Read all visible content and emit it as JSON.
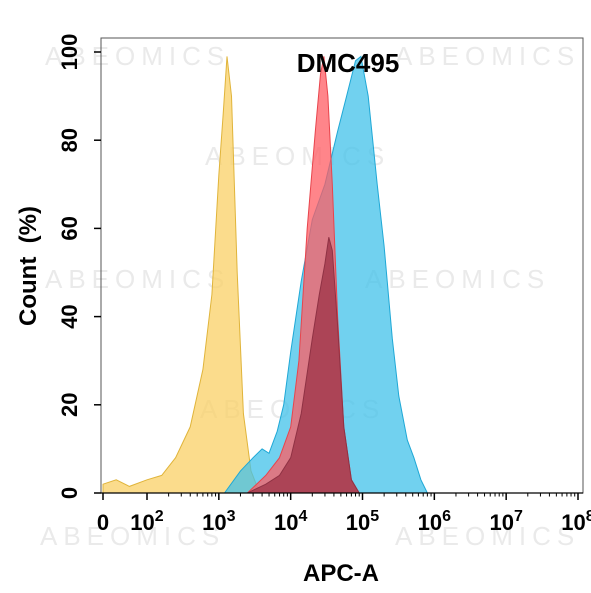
{
  "chart_data": {
    "type": "area",
    "title": "DMC495",
    "xlabel": "APC-A",
    "ylabel": "Count  (%)",
    "x_scale": "biexponential-log",
    "xlim": [
      0,
      100000000
    ],
    "ylim": [
      0,
      100
    ],
    "x_ticks": [
      {
        "value": 0,
        "label": "0",
        "exp": ""
      },
      {
        "value": 100,
        "label": "10",
        "exp": "2"
      },
      {
        "value": 1000,
        "label": "10",
        "exp": "3"
      },
      {
        "value": 10000,
        "label": "10",
        "exp": "4"
      },
      {
        "value": 100000,
        "label": "10",
        "exp": "5"
      },
      {
        "value": 1000000,
        "label": "10",
        "exp": "6"
      },
      {
        "value": 10000000,
        "label": "10",
        "exp": "7"
      },
      {
        "value": 100000000,
        "label": "10",
        "exp": "8"
      }
    ],
    "y_ticks": [
      0,
      20,
      40,
      60,
      80,
      100
    ],
    "watermark": "ABEOMICS",
    "series": [
      {
        "color": "#f9d065",
        "stroke": "#e0b43a",
        "points": [
          [
            0,
            2
          ],
          [
            30,
            3
          ],
          [
            60,
            1.5
          ],
          [
            100,
            3
          ],
          [
            160,
            4
          ],
          [
            250,
            8
          ],
          [
            400,
            15
          ],
          [
            600,
            28
          ],
          [
            800,
            45
          ],
          [
            1000,
            72
          ],
          [
            1150,
            86
          ],
          [
            1300,
            99
          ],
          [
            1500,
            90
          ],
          [
            1800,
            50
          ],
          [
            2200,
            18
          ],
          [
            2800,
            5
          ],
          [
            3500,
            1
          ],
          [
            4500,
            0
          ]
        ]
      },
      {
        "color": "#41c1ea",
        "stroke": "#1fa8d6",
        "points": [
          [
            1200,
            0
          ],
          [
            2000,
            5
          ],
          [
            3000,
            8
          ],
          [
            4000,
            10
          ],
          [
            5000,
            9
          ],
          [
            6500,
            14
          ],
          [
            8000,
            20
          ],
          [
            10000,
            32
          ],
          [
            14000,
            48
          ],
          [
            20000,
            62
          ],
          [
            30000,
            70
          ],
          [
            45000,
            82
          ],
          [
            60000,
            90
          ],
          [
            80000,
            98
          ],
          [
            95000,
            99
          ],
          [
            120000,
            90
          ],
          [
            160000,
            70
          ],
          [
            200000,
            56
          ],
          [
            260000,
            35
          ],
          [
            320000,
            22
          ],
          [
            420000,
            12
          ],
          [
            520000,
            8
          ],
          [
            650000,
            3
          ],
          [
            800000,
            0
          ]
        ]
      },
      {
        "color": "#ff5c63",
        "stroke": "#e8444c",
        "points": [
          [
            2500,
            0
          ],
          [
            4500,
            4
          ],
          [
            7000,
            8
          ],
          [
            10000,
            15
          ],
          [
            13000,
            30
          ],
          [
            17000,
            60
          ],
          [
            22000,
            82
          ],
          [
            26000,
            95
          ],
          [
            29000,
            99
          ],
          [
            33000,
            90
          ],
          [
            38000,
            70
          ],
          [
            45000,
            40
          ],
          [
            55000,
            15
          ],
          [
            70000,
            3
          ],
          [
            90000,
            0
          ]
        ]
      },
      {
        "color": "#a33b4e",
        "stroke": "#8f3244",
        "points": [
          [
            2500,
            0
          ],
          [
            4500,
            2
          ],
          [
            7000,
            4
          ],
          [
            10000,
            8
          ],
          [
            14000,
            18
          ],
          [
            20000,
            35
          ],
          [
            25000,
            45
          ],
          [
            30000,
            52
          ],
          [
            34000,
            58
          ],
          [
            38000,
            55
          ],
          [
            45000,
            38
          ],
          [
            55000,
            15
          ],
          [
            70000,
            3
          ],
          [
            90000,
            0
          ]
        ]
      }
    ]
  }
}
